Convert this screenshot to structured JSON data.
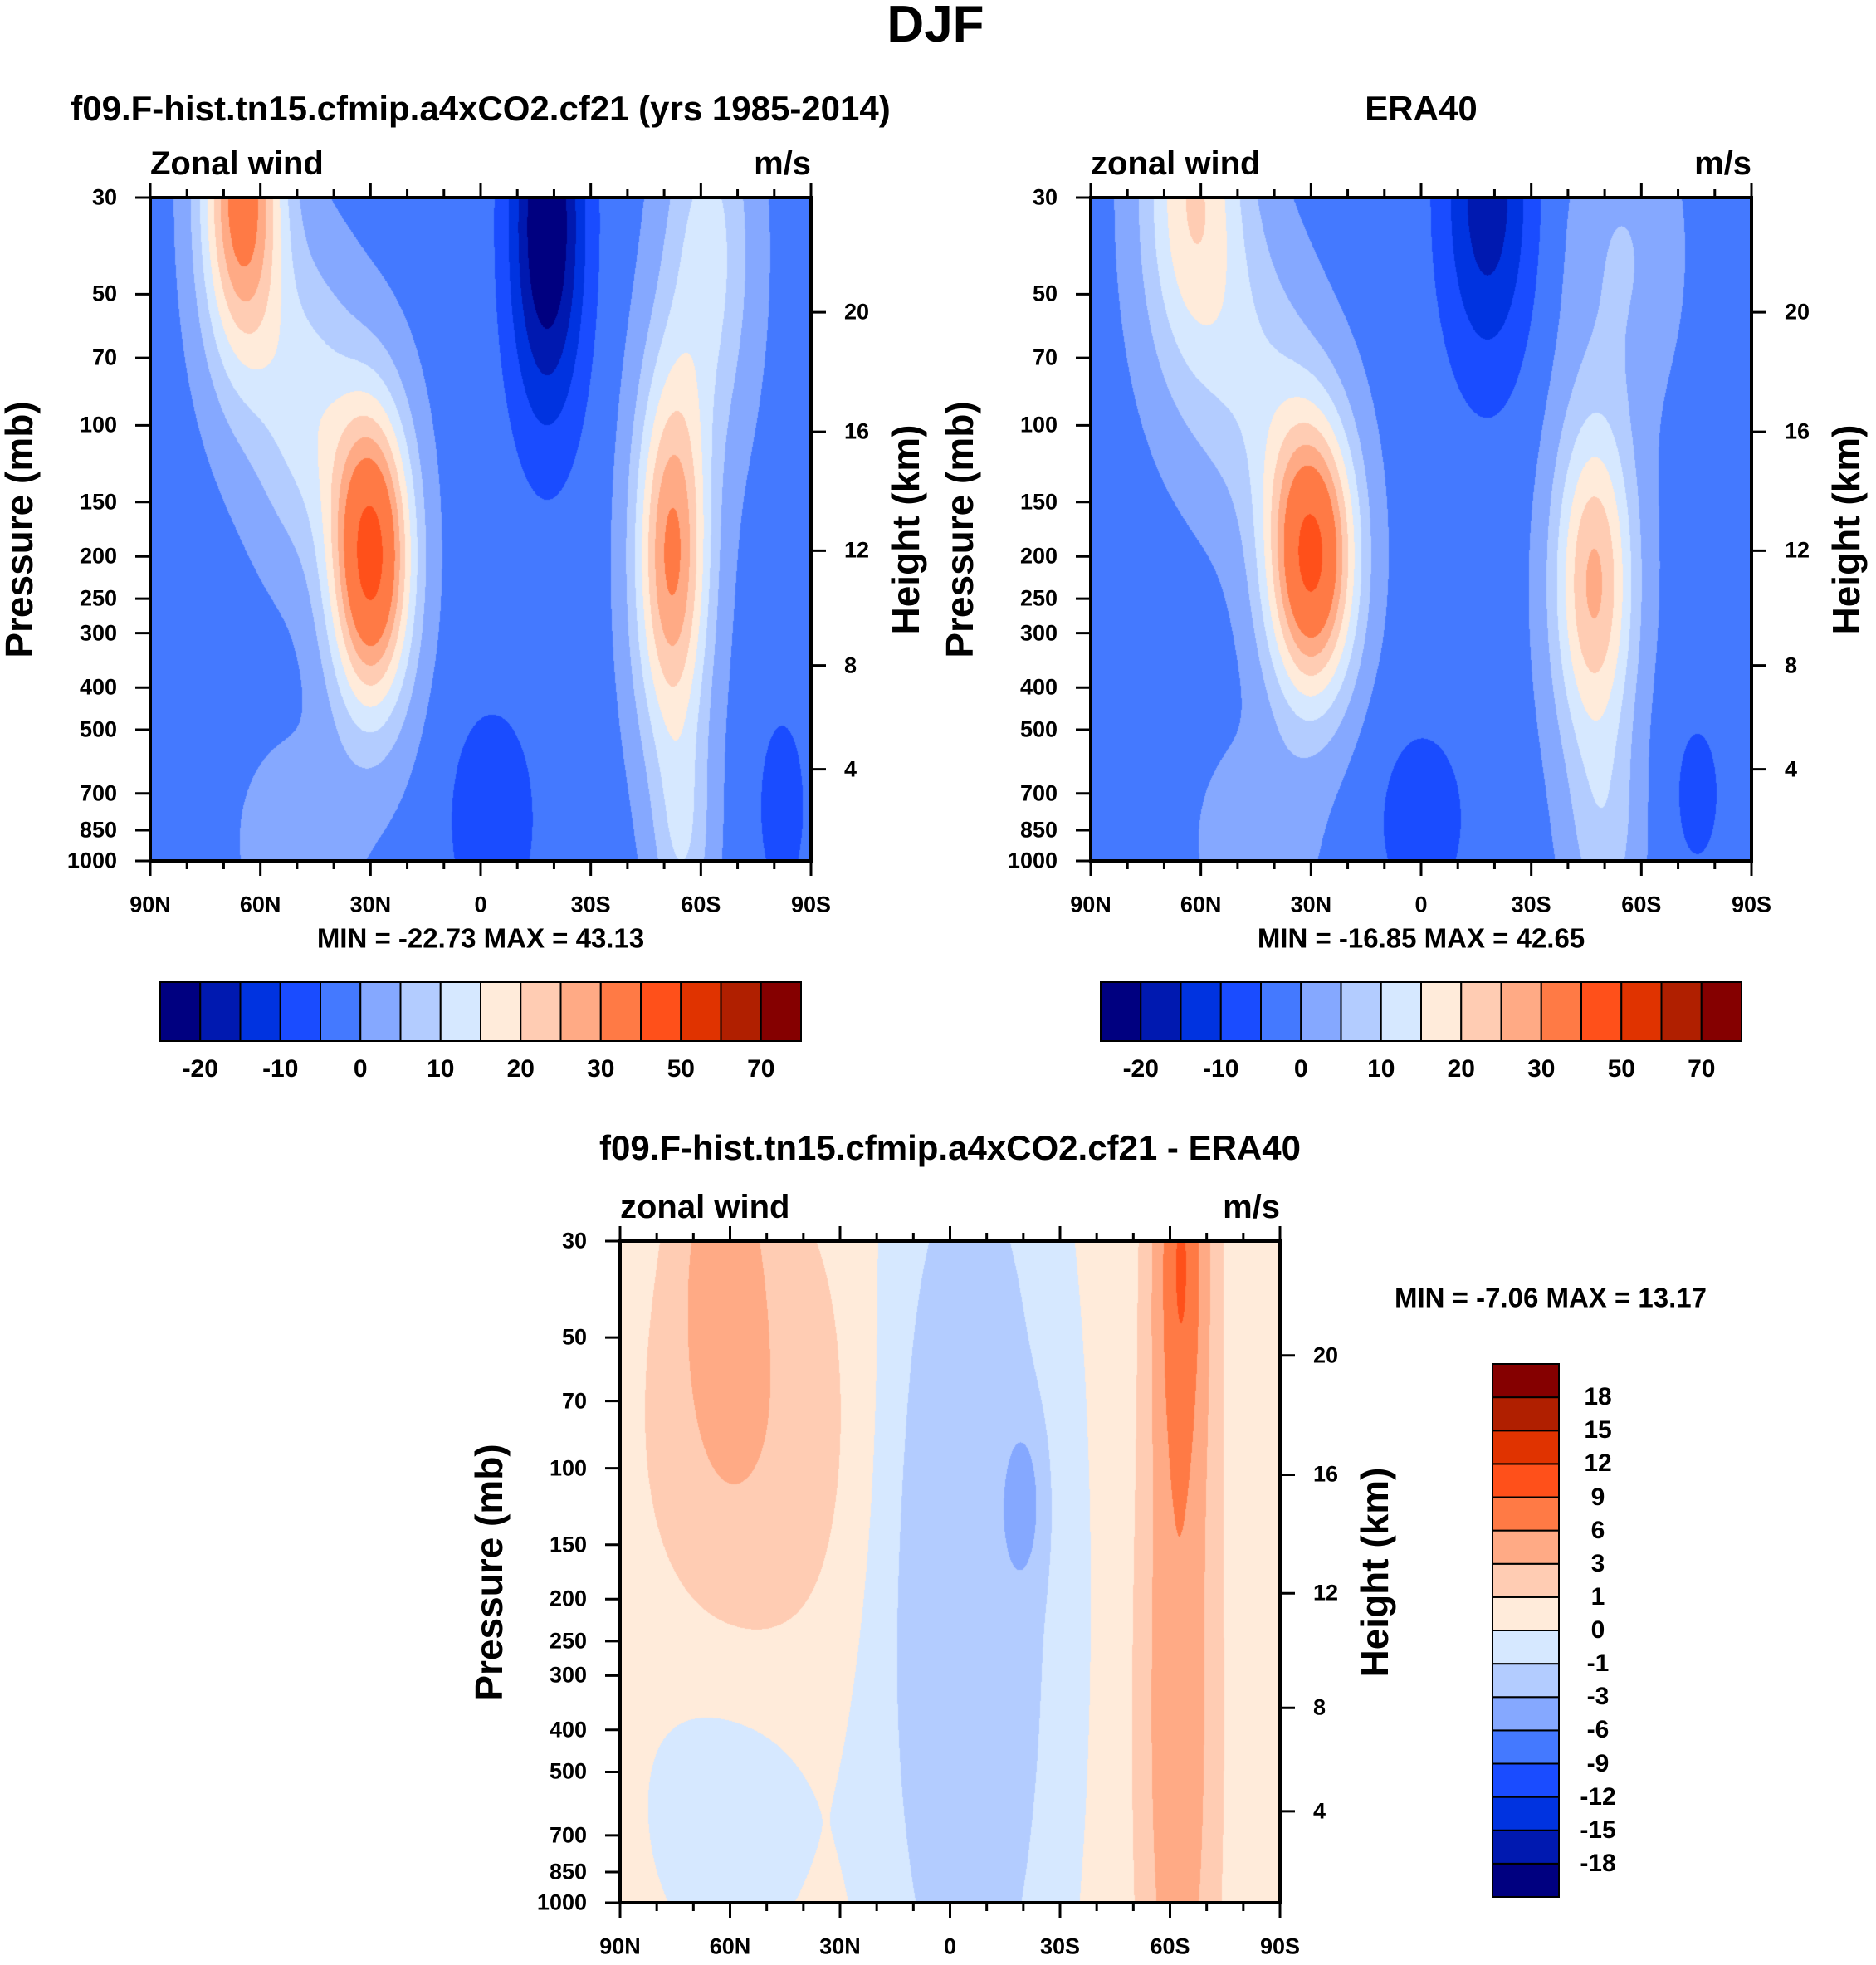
{
  "title": "DJF",
  "chart_data": [
    {
      "type": "heatmap",
      "title": "f09.F-hist.tn15.cfmip.a4xCO2.cf21 (yrs 1985-2014)",
      "left_label": "Zonal wind",
      "units": "m/s",
      "ylabel": "Pressure (mb)",
      "ylabel_right": "Height (km)",
      "min_max_text": "MIN = -22.73  MAX =  43.13",
      "min": -22.73,
      "max": 43.13,
      "xticks": [
        "90N",
        "60N",
        "30N",
        "0",
        "30S",
        "60S",
        "90S"
      ],
      "xtick_lats": [
        90,
        60,
        30,
        0,
        -30,
        -60,
        -90
      ],
      "ylim_mb": [
        1000,
        30
      ],
      "yticks": [
        30,
        50,
        70,
        100,
        150,
        200,
        250,
        300,
        400,
        500,
        700,
        850,
        1000
      ],
      "yticks_labels": [
        "30",
        "50",
        "70",
        "100",
        "150",
        "200",
        "250",
        "300",
        "400",
        "500",
        "700",
        "850",
        "1000"
      ],
      "height_ticks": [
        {
          "km": "4",
          "mb": 616
        },
        {
          "km": "8",
          "mb": 356
        },
        {
          "km": "12",
          "mb": 194
        },
        {
          "km": "16",
          "mb": 103.5
        },
        {
          "km": "20",
          "mb": 55
        }
      ],
      "levels": [
        -20,
        -15,
        -10,
        -5,
        0,
        5,
        10,
        15,
        20,
        25,
        30,
        40,
        50,
        60,
        70
      ],
      "colorbar_labels": [
        "-20",
        "-10",
        "0",
        "10",
        "20",
        "30",
        "50",
        "70"
      ],
      "colorbar_label_every": 2,
      "colorbar_orientation": "horizontal",
      "colors": [
        "#000080",
        "#0019B0",
        "#0033E0",
        "#1A4CFF",
        "#4479FF",
        "#85A8FF",
        "#B3CCFF",
        "#D6E8FF",
        "#FFEBDA",
        "#FFCCB3",
        "#FFAA85",
        "#FF7A45",
        "#FF501A",
        "#E03300",
        "#B01F00",
        "#850000"
      ],
      "field": {
        "base": -2,
        "features": [
          {
            "lat": 30,
            "p": 200,
            "amp": 45,
            "wl": 11,
            "wp": 0.8
          },
          {
            "lat": 65,
            "p": 30,
            "amp": 36,
            "wl": 11,
            "wp": 0.9
          },
          {
            "lat": 48,
            "p": 90,
            "amp": 14,
            "wl": 14,
            "wp": 0.8
          },
          {
            "lat": -52,
            "p": 200,
            "amp": 33,
            "wl": 10,
            "wp": 1.0
          },
          {
            "lat": -18,
            "p": 35,
            "amp": -24,
            "wl": 10,
            "wp": 1.0
          },
          {
            "lat": -3,
            "p": 800,
            "amp": -7,
            "wl": 12,
            "wp": 0.6
          },
          {
            "lat": 50,
            "p": 900,
            "amp": 6,
            "wl": 15,
            "wp": 0.5
          },
          {
            "lat": -55,
            "p": 900,
            "amp": 10,
            "wl": 8,
            "wp": 0.6
          },
          {
            "lat": -62,
            "p": 40,
            "amp": 14,
            "wl": 12,
            "wp": 1.0
          },
          {
            "lat": -82,
            "p": 750,
            "amp": -5,
            "wl": 8,
            "wp": 0.6
          }
        ]
      }
    },
    {
      "type": "heatmap",
      "title": "ERA40",
      "left_label": "zonal wind",
      "units": "m/s",
      "ylabel": "Pressure (mb)",
      "ylabel_right": "Height (km)",
      "min_max_text": "MIN = -16.85  MAX =  42.65",
      "min": -16.85,
      "max": 42.65,
      "xticks": [
        "90N",
        "60N",
        "30N",
        "0",
        "30S",
        "60S",
        "90S"
      ],
      "xtick_lats": [
        90,
        60,
        30,
        0,
        -30,
        -60,
        -90
      ],
      "ylim_mb": [
        1000,
        30
      ],
      "yticks": [
        30,
        50,
        70,
        100,
        150,
        200,
        250,
        300,
        400,
        500,
        700,
        850,
        1000
      ],
      "yticks_labels": [
        "30",
        "50",
        "70",
        "100",
        "150",
        "200",
        "250",
        "300",
        "400",
        "500",
        "700",
        "850",
        "1000"
      ],
      "height_ticks": [
        {
          "km": "4",
          "mb": 616
        },
        {
          "km": "8",
          "mb": 356
        },
        {
          "km": "12",
          "mb": 194
        },
        {
          "km": "16",
          "mb": 103.5
        },
        {
          "km": "20",
          "mb": 55
        }
      ],
      "levels": [
        -20,
        -15,
        -10,
        -5,
        0,
        5,
        10,
        15,
        20,
        25,
        30,
        40,
        50,
        60,
        70
      ],
      "colorbar_labels": [
        "-20",
        "-10",
        "0",
        "10",
        "20",
        "30",
        "50",
        "70"
      ],
      "colorbar_label_every": 2,
      "colorbar_orientation": "horizontal",
      "colors": [
        "#000080",
        "#0019B0",
        "#0033E0",
        "#1A4CFF",
        "#4479FF",
        "#85A8FF",
        "#B3CCFF",
        "#D6E8FF",
        "#FFEBDA",
        "#FFCCB3",
        "#FFAA85",
        "#FF7A45",
        "#FF501A",
        "#E03300",
        "#B01F00",
        "#850000"
      ],
      "field": {
        "base": -2,
        "features": [
          {
            "lat": 30,
            "p": 200,
            "amp": 44,
            "wl": 12,
            "wp": 0.75
          },
          {
            "lat": 62,
            "p": 30,
            "amp": 22,
            "wl": 14,
            "wp": 1.0
          },
          {
            "lat": 45,
            "p": 80,
            "amp": 10,
            "wl": 15,
            "wp": 0.8
          },
          {
            "lat": -47,
            "p": 230,
            "amp": 28,
            "wl": 11,
            "wp": 0.9
          },
          {
            "lat": -18,
            "p": 30,
            "amp": -16,
            "wl": 12,
            "wp": 0.9
          },
          {
            "lat": 0,
            "p": 800,
            "amp": -5,
            "wl": 15,
            "wp": 0.6
          },
          {
            "lat": -75,
            "p": 700,
            "amp": -4,
            "wl": 10,
            "wp": 0.6
          },
          {
            "lat": 45,
            "p": 900,
            "amp": 6,
            "wl": 15,
            "wp": 0.5
          },
          {
            "lat": -50,
            "p": 900,
            "amp": 8,
            "wl": 10,
            "wp": 0.6
          },
          {
            "lat": -55,
            "p": 40,
            "amp": 7,
            "wl": 15,
            "wp": 0.8
          }
        ]
      }
    },
    {
      "type": "heatmap",
      "title": "f09.F-hist.tn15.cfmip.a4xCO2.cf21 - ERA40",
      "left_label": "zonal wind",
      "units": "m/s",
      "ylabel": "Pressure (mb)",
      "ylabel_right": "Height (km)",
      "min_max_text": "MIN =  -7.06  MAX =  13.17",
      "min": -7.06,
      "max": 13.17,
      "xticks": [
        "90N",
        "60N",
        "30N",
        "0",
        "30S",
        "60S",
        "90S"
      ],
      "xtick_lats": [
        90,
        60,
        30,
        0,
        -30,
        -60,
        -90
      ],
      "ylim_mb": [
        1000,
        30
      ],
      "yticks": [
        30,
        50,
        70,
        100,
        150,
        200,
        250,
        300,
        400,
        500,
        700,
        850,
        1000
      ],
      "yticks_labels": [
        "30",
        "50",
        "70",
        "100",
        "150",
        "200",
        "250",
        "300",
        "400",
        "500",
        "700",
        "850",
        "1000"
      ],
      "height_ticks": [
        {
          "km": "4",
          "mb": 616
        },
        {
          "km": "8",
          "mb": 356
        },
        {
          "km": "12",
          "mb": 194
        },
        {
          "km": "16",
          "mb": 103.5
        },
        {
          "km": "20",
          "mb": 55
        }
      ],
      "levels": [
        -18,
        -15,
        -12,
        -9,
        -6,
        -3,
        -1,
        0,
        1,
        3,
        6,
        9,
        12,
        15,
        18
      ],
      "colorbar_labels": [
        "-18",
        "-15",
        "-12",
        "-9",
        "-6",
        "-3",
        "-1",
        "0",
        "1",
        "3",
        "6",
        "9",
        "12",
        "15",
        "18"
      ],
      "colorbar_label_every": 1,
      "colorbar_orientation": "vertical",
      "colors": [
        "#000080",
        "#0019B0",
        "#0033E0",
        "#1A4CFF",
        "#4479FF",
        "#85A8FF",
        "#B3CCFF",
        "#D6E8FF",
        "#FFEBDA",
        "#FFCCB3",
        "#FFAA85",
        "#FF7A45",
        "#FF501A",
        "#E03300",
        "#B01F00",
        "#850000"
      ],
      "field": {
        "base": 0.3,
        "features": [
          {
            "lat": -63,
            "p": 30,
            "amp": 8,
            "wl": 7,
            "wp": 1.3
          },
          {
            "lat": -62,
            "p": 400,
            "amp": 5,
            "wl": 9,
            "wp": 2.0
          },
          {
            "lat": 62,
            "p": 35,
            "amp": 4,
            "wl": 10,
            "wp": 0.8
          },
          {
            "lat": 55,
            "p": 80,
            "amp": 2.5,
            "wl": 25,
            "wp": 1.2
          },
          {
            "lat": -5,
            "p": 200,
            "amp": -3,
            "wl": 22,
            "wp": 2.5
          },
          {
            "lat": -20,
            "p": 120,
            "amp": -3,
            "wl": 5,
            "wp": 0.4
          },
          {
            "lat": 60,
            "p": 500,
            "amp": -0.8,
            "wl": 25,
            "wp": 1.0
          }
        ]
      }
    }
  ]
}
